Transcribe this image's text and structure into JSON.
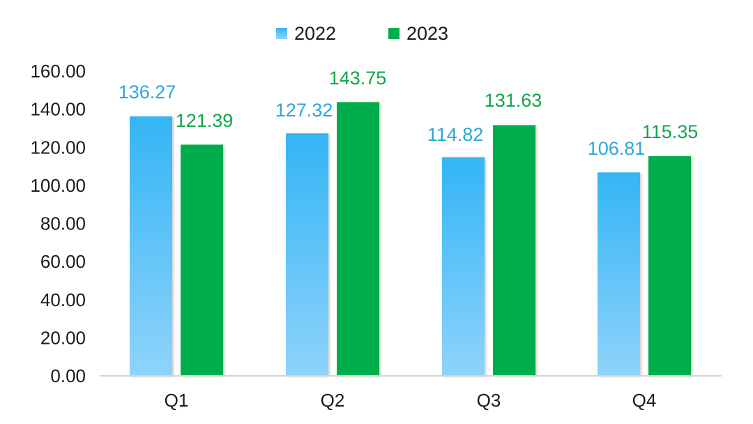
{
  "chart_data": {
    "type": "bar",
    "categories": [
      "Q1",
      "Q2",
      "Q3",
      "Q4"
    ],
    "series": [
      {
        "name": "2022",
        "values": [
          136.27,
          127.32,
          114.82,
          106.81
        ],
        "labels": [
          "136.27",
          "127.32",
          "114.82",
          "106.81"
        ],
        "color": "#33b5f5",
        "color_light": "#8fd3fb",
        "label_color": "#2ea6dc"
      },
      {
        "name": "2023",
        "values": [
          121.39,
          143.75,
          131.63,
          115.35
        ],
        "labels": [
          "121.39",
          "143.75",
          "131.63",
          "115.35"
        ],
        "color": "#00ad4d",
        "label_color": "#10a64a"
      }
    ],
    "yticks": [
      "0.00",
      "20.00",
      "40.00",
      "60.00",
      "80.00",
      "100.00",
      "120.00",
      "140.00",
      "160.00"
    ],
    "ylim": [
      0,
      160
    ],
    "grid": false,
    "legend_position": "top-center",
    "title": "",
    "xlabel": "",
    "ylabel": ""
  }
}
